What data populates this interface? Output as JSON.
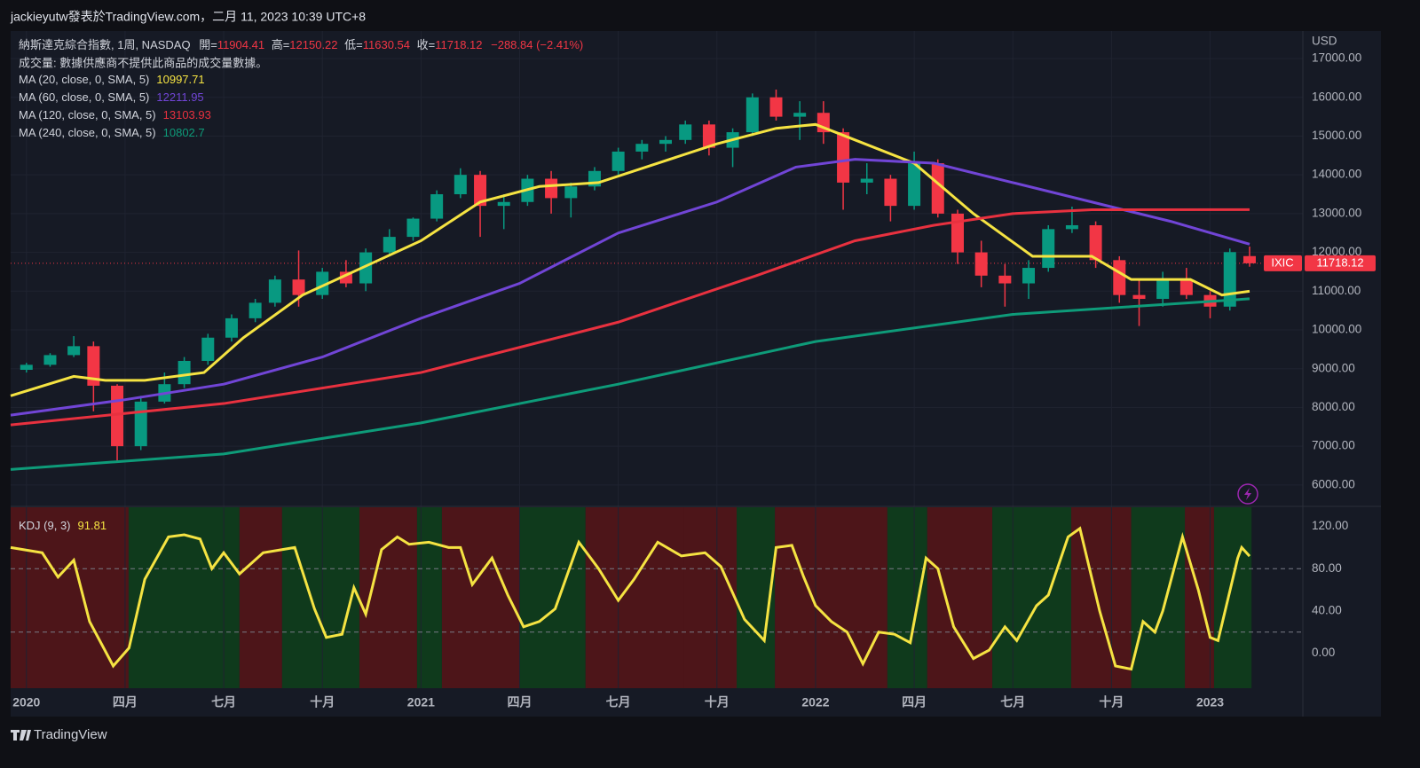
{
  "header": {
    "title": "jackieyutw發表於TradingView.com，二月 11, 2023 10:39 UTC+8"
  },
  "legend": {
    "symbol": "納斯達克綜合指數, 1周, NASDAQ",
    "open_label": "開=",
    "high_label": "高=",
    "low_label": "低=",
    "close_label": "收=",
    "change": "−288.84 (−2.41%)",
    "volume_note": "成交量: 數據供應商不提供此商品的成交量數據。",
    "ticker": "IXIC",
    "currency": "USD"
  },
  "footer": {
    "brand": "TradingView"
  },
  "chart_data": [
    {
      "type": "candlestick",
      "up_color": "#089981",
      "down_color": "#f23645",
      "xlim": [
        2019.96,
        2023.235
      ],
      "xticks": [
        {
          "value": 2020,
          "label": "2020"
        },
        {
          "value": 2020.25,
          "label": "四月"
        },
        {
          "value": 2020.5,
          "label": "七月"
        },
        {
          "value": 2020.75,
          "label": "十月"
        },
        {
          "value": 2021,
          "label": "2021"
        },
        {
          "value": 2021.25,
          "label": "四月"
        },
        {
          "value": 2021.5,
          "label": "七月"
        },
        {
          "value": 2021.75,
          "label": "十月"
        },
        {
          "value": 2022,
          "label": "2022"
        },
        {
          "value": 2022.25,
          "label": "四月"
        },
        {
          "value": 2022.5,
          "label": "七月"
        },
        {
          "value": 2022.75,
          "label": "十月"
        },
        {
          "value": 2023,
          "label": "2023"
        }
      ],
      "ylim": [
        5470,
        17710
      ],
      "yticks": [
        {
          "value": 6000,
          "label": "6000.00"
        },
        {
          "value": 7000,
          "label": "7000.00"
        },
        {
          "value": 8000,
          "label": "8000.00"
        },
        {
          "value": 9000,
          "label": "9000.00"
        },
        {
          "value": 10000,
          "label": "10000.00"
        },
        {
          "value": 11000,
          "label": "11000.00"
        },
        {
          "value": 12000,
          "label": "12000.00"
        },
        {
          "value": 13000,
          "label": "13000.00"
        },
        {
          "value": 14000,
          "label": "14000.00"
        },
        {
          "value": 15000,
          "label": "15000.00"
        },
        {
          "value": 16000,
          "label": "16000.00"
        },
        {
          "value": 17000,
          "label": "17000.00"
        }
      ],
      "candles": {
        "x": [
          2020.0,
          2020.06,
          2020.12,
          2020.17,
          2020.23,
          2020.29,
          2020.35,
          2020.4,
          2020.46,
          2020.52,
          2020.58,
          2020.63,
          2020.69,
          2020.75,
          2020.81,
          2020.86,
          2020.92,
          2020.98,
          2021.04,
          2021.1,
          2021.15,
          2021.21,
          2021.27,
          2021.33,
          2021.38,
          2021.44,
          2021.5,
          2021.56,
          2021.62,
          2021.67,
          2021.73,
          2021.79,
          2021.84,
          2021.9,
          2021.96,
          2022.02,
          2022.07,
          2022.13,
          2022.19,
          2022.25,
          2022.31,
          2022.36,
          2022.42,
          2022.48,
          2022.54,
          2022.59,
          2022.65,
          2022.71,
          2022.77,
          2022.82,
          2022.88,
          2022.94,
          2023.0,
          2023.05,
          2023.1
        ],
        "open": [
          8970,
          9100,
          9350,
          9580,
          8560,
          7000,
          8150,
          8600,
          9200,
          9800,
          10300,
          10700,
          11300,
          10900,
          11500,
          11200,
          12000,
          12400,
          12870,
          13500,
          14000,
          13200,
          13300,
          13900,
          13400,
          13700,
          14100,
          14600,
          14800,
          14900,
          15300,
          14700,
          15100,
          16000,
          15500,
          15600,
          15100,
          13800,
          13900,
          13200,
          14300,
          13000,
          12000,
          11400,
          11200,
          11600,
          12600,
          12700,
          11800,
          10900,
          10800,
          11300,
          10900,
          10600,
          11904.41
        ],
        "high": [
          9150,
          9400,
          9840,
          9700,
          8600,
          8300,
          8900,
          9300,
          9900,
          10400,
          10800,
          11400,
          12050,
          11600,
          11800,
          12100,
          12600,
          12900,
          13600,
          14170,
          14100,
          13500,
          14000,
          14100,
          13800,
          14200,
          14700,
          14900,
          15000,
          15400,
          15400,
          15200,
          16100,
          16200,
          15900,
          15900,
          15200,
          14300,
          14000,
          14600,
          14400,
          13100,
          12300,
          11700,
          11800,
          12700,
          13180,
          12800,
          11900,
          11300,
          11500,
          11600,
          11000,
          12100,
          12150.22
        ],
        "low": [
          8900,
          9050,
          9300,
          7900,
          6630,
          6900,
          8100,
          8500,
          9100,
          9700,
          10200,
          10600,
          10600,
          10800,
          11100,
          11000,
          11900,
          12300,
          12800,
          13400,
          12400,
          12600,
          13200,
          13000,
          12900,
          13600,
          14000,
          14400,
          14600,
          14800,
          14500,
          14200,
          15000,
          15400,
          14900,
          14800,
          13100,
          13500,
          12800,
          13100,
          12900,
          11700,
          11100,
          10600,
          10800,
          11500,
          12500,
          11600,
          10700,
          10100,
          10600,
          10800,
          10300,
          10500,
          11630.54
        ],
        "close": [
          9100,
          9350,
          9580,
          8560,
          7000,
          8150,
          8600,
          9200,
          9800,
          10300,
          10700,
          11300,
          10900,
          11500,
          11200,
          12000,
          12400,
          12870,
          13500,
          14000,
          13200,
          13300,
          13900,
          13400,
          13700,
          14100,
          14600,
          14800,
          14900,
          15300,
          14700,
          15100,
          16000,
          15500,
          15600,
          15100,
          13800,
          13900,
          13200,
          14300,
          13000,
          12000,
          11400,
          11200,
          11600,
          12600,
          12700,
          11800,
          10900,
          10800,
          11300,
          10900,
          10600,
          12006.96,
          11718.12
        ]
      },
      "series": [
        {
          "name": "MA (20, close, 0, SMA, 5)",
          "color": "#f5e342",
          "x": [
            2019.96,
            2020.12,
            2020.2,
            2020.3,
            2020.45,
            2020.55,
            2020.7,
            2020.85,
            2021.0,
            2021.15,
            2021.3,
            2021.45,
            2021.6,
            2021.75,
            2021.9,
            2022.0,
            2022.1,
            2022.25,
            2022.4,
            2022.55,
            2022.7,
            2022.8,
            2022.95,
            2023.03,
            2023.1
          ],
          "values": [
            8300,
            8800,
            8700,
            8700,
            8900,
            9800,
            10900,
            11600,
            12300,
            13300,
            13700,
            13800,
            14300,
            14800,
            15200,
            15300,
            14900,
            14300,
            13000,
            11900,
            11900,
            11300,
            11300,
            10900,
            10997.71
          ]
        },
        {
          "name": "MA (60, close, 0, SMA, 5)",
          "color": "#7145d6",
          "x": [
            2019.96,
            2020.25,
            2020.5,
            2020.75,
            2021.0,
            2021.25,
            2021.5,
            2021.75,
            2021.95,
            2022.1,
            2022.3,
            2022.5,
            2022.7,
            2022.9,
            2023.1
          ],
          "values": [
            7800,
            8200,
            8600,
            9300,
            10300,
            11200,
            12500,
            13300,
            14200,
            14400,
            14300,
            13800,
            13300,
            12800,
            12211.95
          ]
        },
        {
          "name": "MA (120, close, 0, SMA, 5)",
          "color": "#e8313f",
          "x": [
            2019.96,
            2020.5,
            2021.0,
            2021.5,
            2021.85,
            2022.1,
            2022.3,
            2022.5,
            2022.7,
            2023.1
          ],
          "values": [
            7550,
            8100,
            8900,
            10200,
            11400,
            12300,
            12700,
            13000,
            13100,
            13103.93
          ]
        },
        {
          "name": "MA (240, close, 0, SMA, 5)",
          "color": "#0e9b79",
          "x": [
            2019.96,
            2020.5,
            2021.0,
            2021.5,
            2022.0,
            2022.5,
            2022.8,
            2023.1
          ],
          "values": [
            6400,
            6800,
            7600,
            8600,
            9700,
            10400,
            10600,
            10802.7
          ]
        }
      ]
    },
    {
      "type": "line",
      "name": "KDJ (9, 3)",
      "color": "#f5e342",
      "xlim": [
        2019.96,
        2023.235
      ],
      "ylim": [
        -33,
        138
      ],
      "yticks": [
        {
          "value": 0,
          "label": "0.00"
        },
        {
          "value": 40,
          "label": "40.00"
        },
        {
          "value": 80,
          "label": "80.00"
        },
        {
          "value": 120,
          "label": "120.00"
        }
      ],
      "levels": [
        20,
        80
      ],
      "x": [
        2019.96,
        2020.04,
        2020.08,
        2020.12,
        2020.16,
        2020.22,
        2020.26,
        2020.3,
        2020.36,
        2020.4,
        2020.44,
        2020.47,
        2020.5,
        2020.54,
        2020.6,
        2020.68,
        2020.73,
        2020.76,
        2020.8,
        2020.83,
        2020.86,
        2020.9,
        2020.94,
        2020.97,
        2021.02,
        2021.07,
        2021.1,
        2021.13,
        2021.18,
        2021.22,
        2021.26,
        2021.3,
        2021.34,
        2021.4,
        2021.45,
        2021.5,
        2021.54,
        2021.6,
        2021.66,
        2021.72,
        2021.76,
        2021.82,
        2021.87,
        2021.9,
        2021.94,
        2021.97,
        2022.0,
        2022.04,
        2022.08,
        2022.12,
        2022.16,
        2022.2,
        2022.24,
        2022.28,
        2022.31,
        2022.35,
        2022.4,
        2022.44,
        2022.48,
        2022.51,
        2022.56,
        2022.59,
        2022.64,
        2022.67,
        2022.72,
        2022.76,
        2022.8,
        2022.83,
        2022.86,
        2022.88,
        2022.93,
        2022.97,
        2023.0,
        2023.02,
        2023.07,
        2023.08,
        2023.1
      ],
      "values": [
        100,
        95,
        72,
        88,
        30,
        -12,
        5,
        70,
        110,
        112,
        108,
        80,
        95,
        75,
        95,
        100,
        42,
        15,
        18,
        62,
        37,
        98,
        110,
        103,
        105,
        100,
        100,
        65,
        90,
        55,
        25,
        30,
        42,
        105,
        80,
        50,
        70,
        105,
        92,
        95,
        82,
        32,
        12,
        100,
        102,
        72,
        45,
        30,
        20,
        -10,
        20,
        18,
        10,
        90,
        80,
        25,
        -5,
        3,
        25,
        12,
        45,
        55,
        110,
        118,
        40,
        -12,
        -15,
        30,
        20,
        40,
        110,
        60,
        15,
        12,
        90,
        100,
        91.81
      ],
      "zones": [
        {
          "from": 2019.96,
          "to": 2020.259,
          "color": "#4d1519"
        },
        {
          "from": 2020.259,
          "to": 2020.54,
          "color": "#0f3a1c"
        },
        {
          "from": 2020.54,
          "to": 2020.648,
          "color": "#4d1519"
        },
        {
          "from": 2020.648,
          "to": 2020.844,
          "color": "#0f3a1c"
        },
        {
          "from": 2020.844,
          "to": 2020.99,
          "color": "#4d1519"
        },
        {
          "from": 2020.99,
          "to": 2021.053,
          "color": "#0f3a1c"
        },
        {
          "from": 2021.053,
          "to": 2021.249,
          "color": "#4d1519"
        },
        {
          "from": 2021.249,
          "to": 2021.417,
          "color": "#0f3a1c"
        },
        {
          "from": 2021.417,
          "to": 2021.665,
          "color": "#4d1519"
        },
        {
          "from": 2021.665,
          "to": 2021.8,
          "color": "#4d1519"
        },
        {
          "from": 2021.8,
          "to": 2021.897,
          "color": "#0f3a1c"
        },
        {
          "from": 2021.897,
          "to": 2022.182,
          "color": "#4d1519"
        },
        {
          "from": 2022.182,
          "to": 2022.283,
          "color": "#0f3a1c"
        },
        {
          "from": 2022.283,
          "to": 2022.448,
          "color": "#4d1519"
        },
        {
          "from": 2022.448,
          "to": 2022.648,
          "color": "#0f3a1c"
        },
        {
          "from": 2022.648,
          "to": 2022.8,
          "color": "#4d1519"
        },
        {
          "from": 2022.8,
          "to": 2022.936,
          "color": "#0f3a1c"
        },
        {
          "from": 2022.936,
          "to": 2023.01,
          "color": "#4d1519"
        },
        {
          "from": 2023.01,
          "to": 2023.105,
          "color": "#0f3a1c"
        }
      ]
    }
  ]
}
